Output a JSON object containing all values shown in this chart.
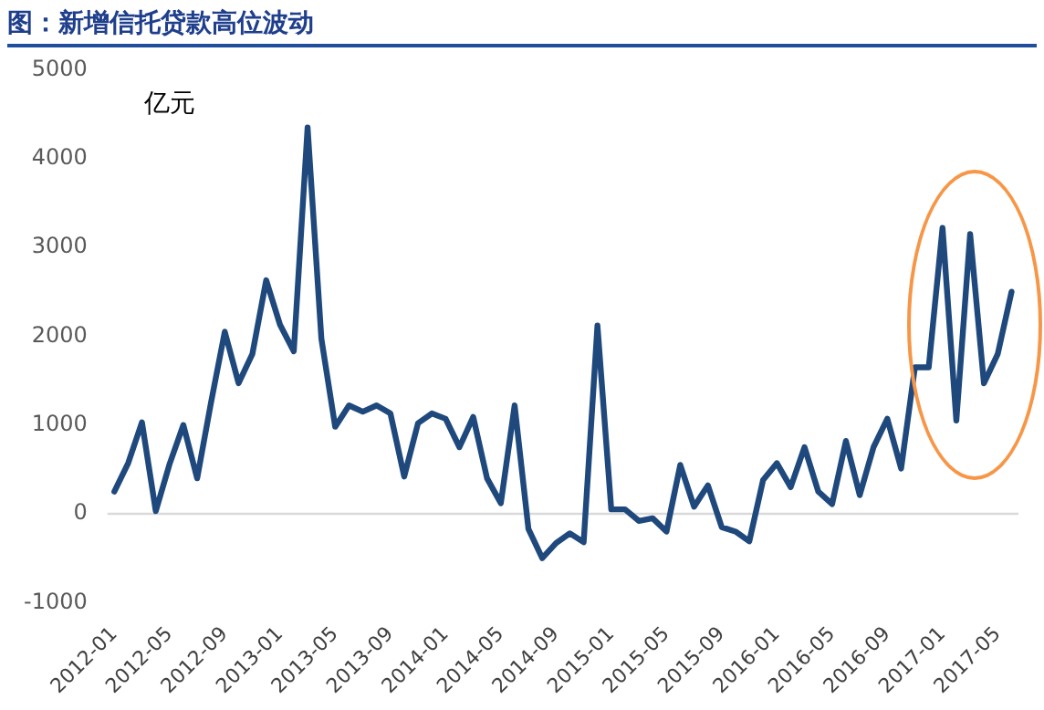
{
  "chart_data": {
    "type": "line",
    "title": "图：新增信托贷款高位波动",
    "ylabel": "亿元",
    "categories": [
      "2012-01",
      null,
      null,
      null,
      "2012-05",
      null,
      null,
      null,
      "2012-09",
      null,
      null,
      null,
      "2013-01",
      null,
      null,
      null,
      "2013-05",
      null,
      null,
      null,
      "2013-09",
      null,
      null,
      null,
      "2014-01",
      null,
      null,
      null,
      "2014-05",
      null,
      null,
      null,
      "2014-09",
      null,
      null,
      null,
      "2015-01",
      null,
      null,
      null,
      "2015-05",
      null,
      null,
      null,
      "2015-09",
      null,
      null,
      null,
      "2016-01",
      null,
      null,
      null,
      "2016-05",
      null,
      null,
      null,
      "2016-09",
      null,
      null,
      null,
      "2017-01",
      null,
      null,
      null,
      "2017-05",
      null
    ],
    "series": [
      {
        "color": "#1f497d",
        "values": [
          250,
          570,
          1030,
          30,
          560,
          1000,
          400,
          1250,
          2050,
          1470,
          1800,
          2630,
          2130,
          1830,
          4350,
          1970,
          980,
          1220,
          1150,
          1220,
          1130,
          420,
          1020,
          1130,
          1070,
          750,
          1090,
          400,
          120,
          1220,
          -170,
          -500,
          -330,
          -220,
          -320,
          2120,
          50,
          50,
          -80,
          -50,
          -200,
          550,
          80,
          320,
          -150,
          -200,
          -310,
          380,
          570,
          300,
          750,
          250,
          110,
          820,
          210,
          750,
          1070,
          510,
          1650,
          1650,
          3220,
          1050,
          3150,
          1470,
          1800,
          2500
        ]
      }
    ],
    "ylim": [
      -1000,
      5000
    ],
    "yticks": [
      -1000,
      0,
      1000,
      2000,
      3000,
      4000,
      5000
    ],
    "ref_lines": [
      {
        "axis": "y",
        "value": 0,
        "color": "#d9d9d9"
      }
    ],
    "grid": false,
    "legend": false,
    "marker": "none",
    "line_style": "solid"
  }
}
